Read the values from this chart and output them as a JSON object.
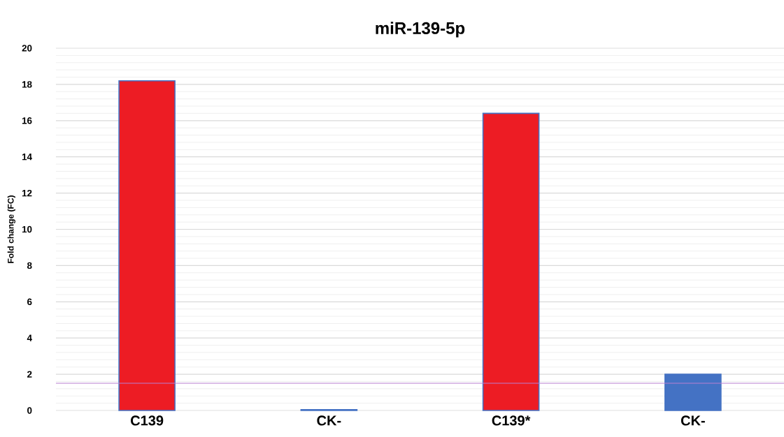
{
  "chart_data": {
    "type": "bar",
    "title": "miR-139-5p",
    "ylabel": "Fold change (FC)",
    "categories": [
      "C139",
      "CK-",
      "C139*",
      "CK-"
    ],
    "values": [
      18.2,
      0.05,
      16.4,
      2.0
    ],
    "colors": [
      "#ed1c24",
      "#4472c4",
      "#ed1c24",
      "#4472c4"
    ],
    "ylim": [
      0,
      20
    ],
    "yticks": [
      0,
      2,
      4,
      6,
      8,
      10,
      12,
      14,
      16,
      18,
      20
    ],
    "grid": "y",
    "ref_lines": [
      {
        "axis": "y",
        "value": 1.5,
        "color": "#b77fcf"
      }
    ]
  }
}
